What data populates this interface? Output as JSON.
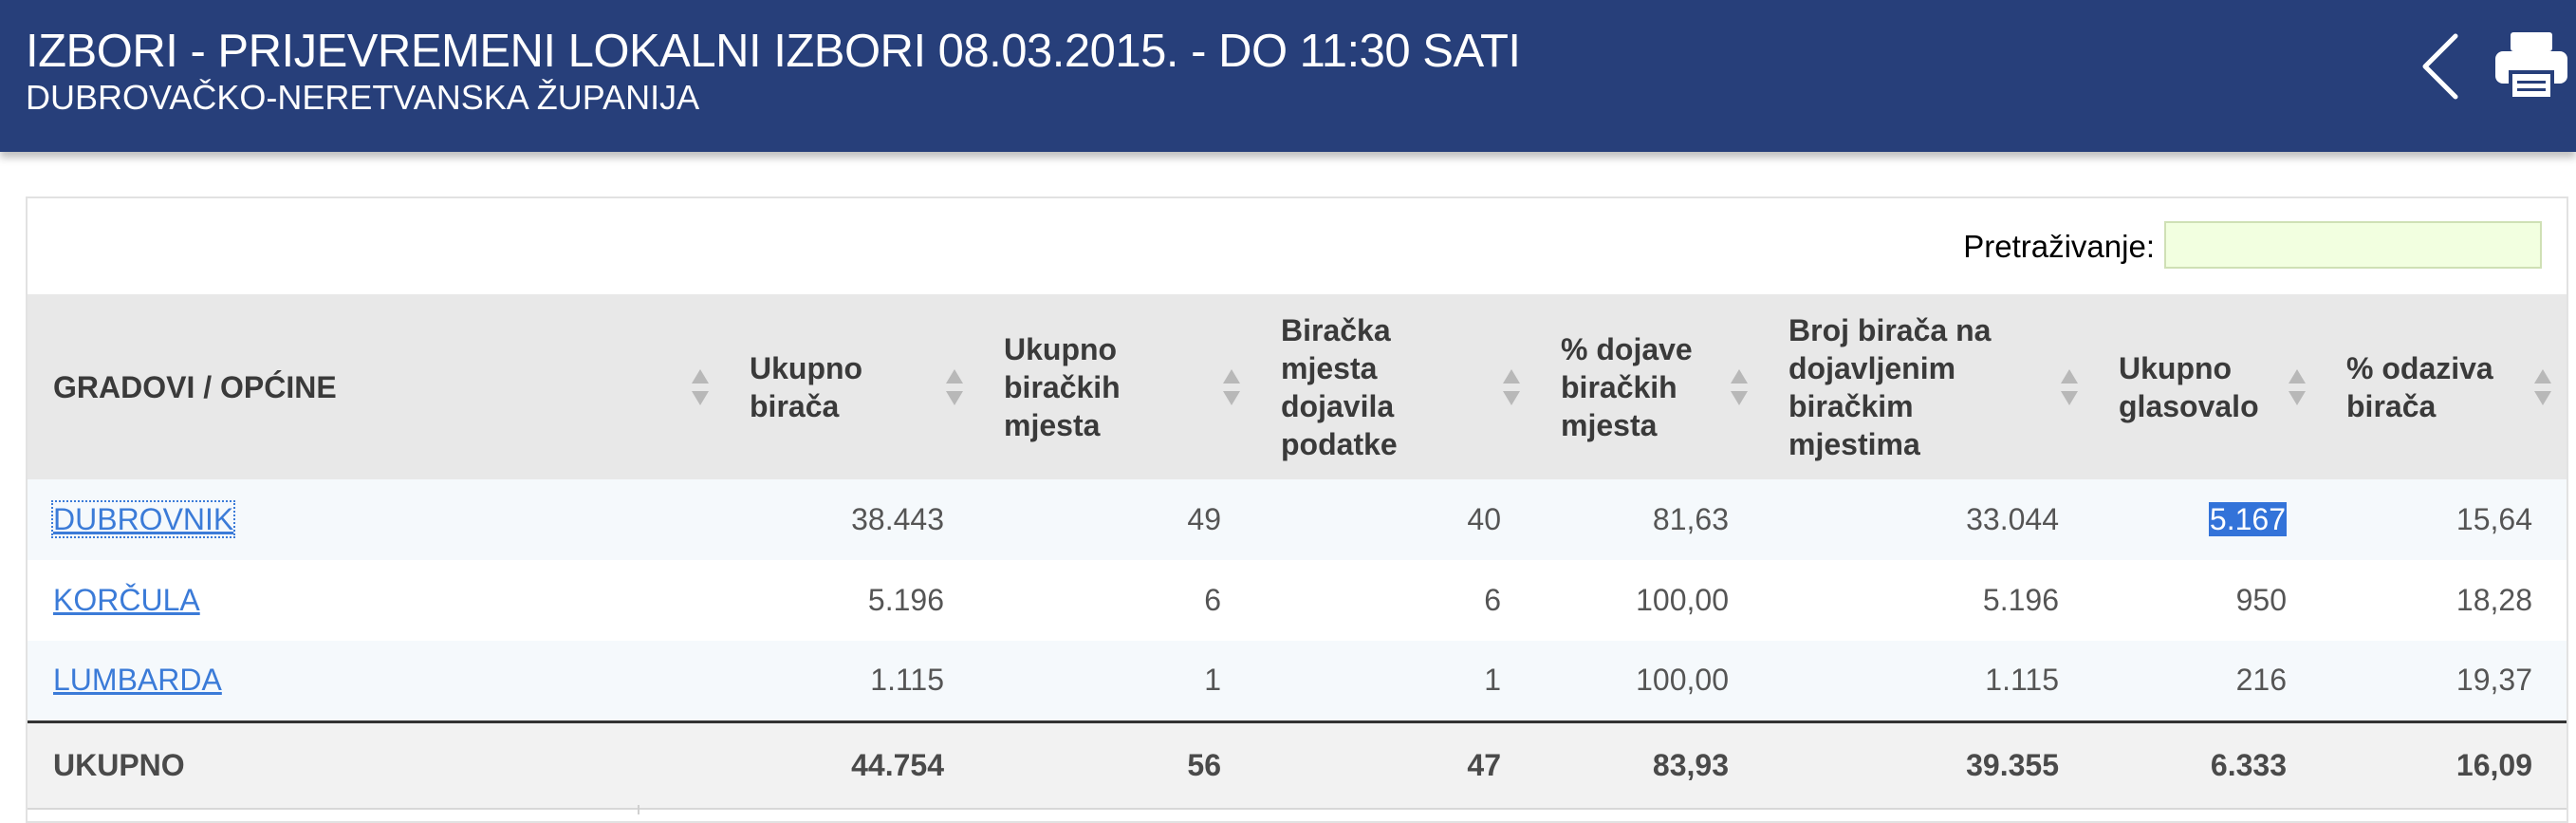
{
  "header": {
    "title": "IZBORI - PRIJEVREMENI LOKALNI IZBORI 08.03.2015. - DO 11:30 SATI",
    "subtitle": "DUBROVAČKO-NERETVANSKA ŽUPANIJA",
    "bg_color": "#273f7a",
    "back_icon": "chevron-left-icon",
    "print_icon": "printer-icon"
  },
  "search": {
    "label": "Pretraživanje:",
    "value": "",
    "placeholder": "",
    "bg_color": "#f2ffe0"
  },
  "table": {
    "columns": [
      "GRADOVI / OPĆINE",
      "Ukupno birača",
      "Ukupno biračkih mjesta",
      "Biračka mjesta dojavila podatke",
      "% dojave biračkih mjesta",
      "Broj birača na dojavljenim biračkim mjestima",
      "Ukupno glasovalo",
      "% odaziva birača"
    ],
    "rows": [
      {
        "name": "DUBROVNIK",
        "ukupno_biraca": "38.443",
        "ukupno_birackih_mjesta": "49",
        "dojavila_podatke": "40",
        "posto_dojave": "81,63",
        "broj_biraca_dojavljeno": "33.044",
        "ukupno_glasovalo": "5.167",
        "posto_odaziva": "15,64"
      },
      {
        "name": "KORČULA",
        "ukupno_biraca": "5.196",
        "ukupno_birackih_mjesta": "6",
        "dojavila_podatke": "6",
        "posto_dojave": "100,00",
        "broj_biraca_dojavljeno": "5.196",
        "ukupno_glasovalo": "950",
        "posto_odaziva": "18,28"
      },
      {
        "name": "LUMBARDA",
        "ukupno_biraca": "1.115",
        "ukupno_birackih_mjesta": "1",
        "dojavila_podatke": "1",
        "posto_dojave": "100,00",
        "broj_biraca_dojavljeno": "1.115",
        "ukupno_glasovalo": "216",
        "posto_odaziva": "19,37"
      }
    ],
    "total": {
      "label": "UKUPNO",
      "ukupno_biraca": "44.754",
      "ukupno_birackih_mjesta": "56",
      "dojavila_podatke": "47",
      "posto_dojave": "83,93",
      "broj_biraca_dojavljeno": "39.355",
      "ukupno_glasovalo": "6.333",
      "posto_odaziva": "16,09"
    },
    "link_color": "#3b7bd8",
    "selection_color": "#3373d9"
  }
}
